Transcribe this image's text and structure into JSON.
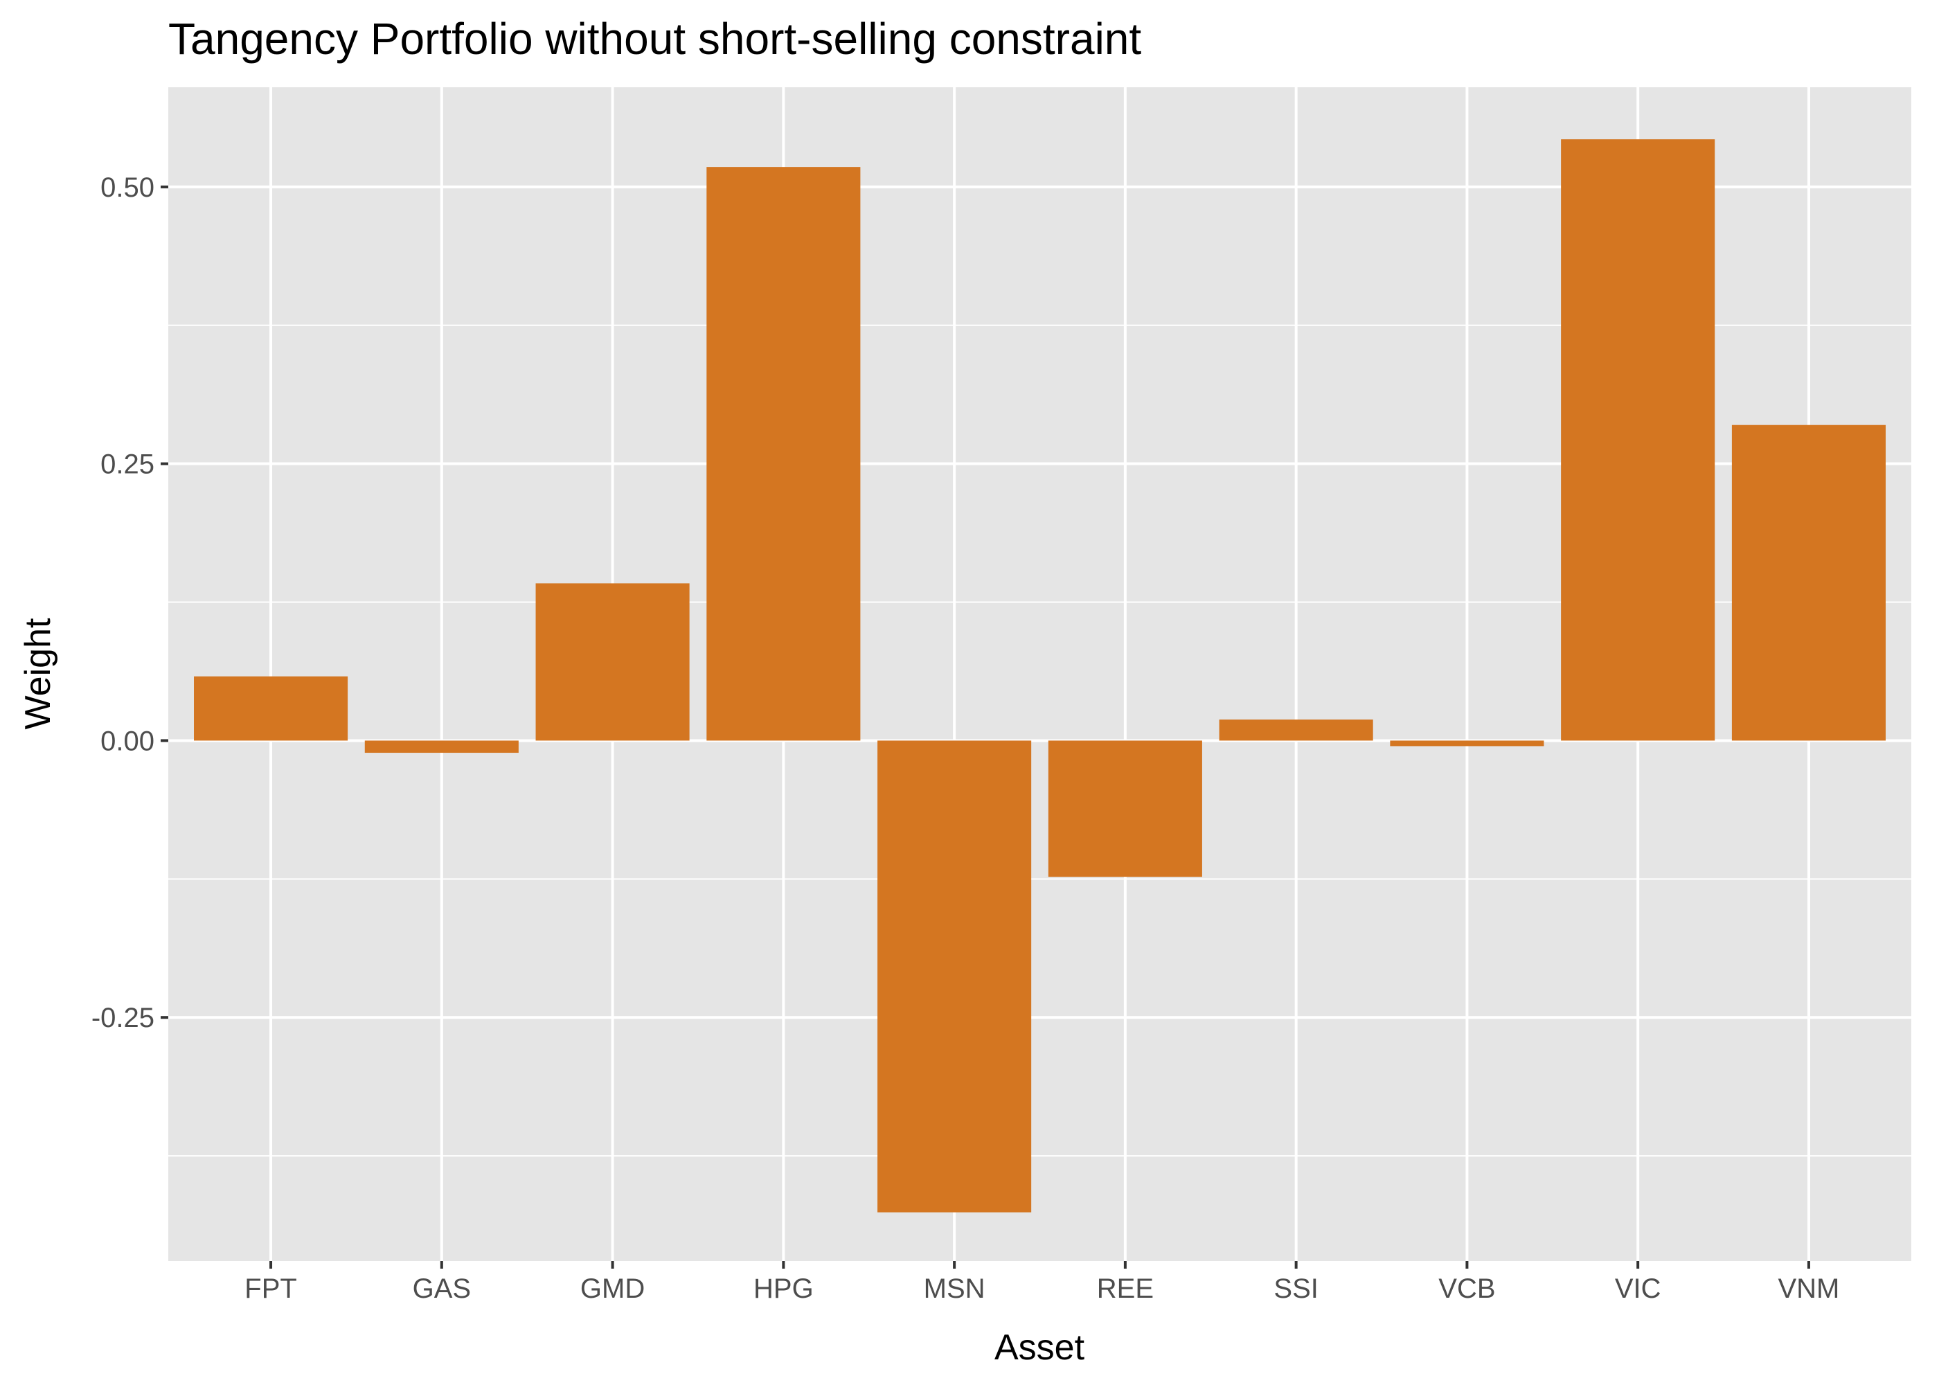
{
  "chart_data": {
    "type": "bar",
    "title": "Tangency Portfolio without short-selling constraint",
    "xlabel": "Asset",
    "ylabel": "Weight",
    "categories": [
      "FPT",
      "GAS",
      "GMD",
      "HPG",
      "MSN",
      "REE",
      "SSI",
      "VCB",
      "VIC",
      "VNM"
    ],
    "values": [
      0.058,
      -0.011,
      0.142,
      0.518,
      -0.426,
      -0.123,
      0.019,
      -0.005,
      0.543,
      0.285
    ],
    "ylim": [
      -0.47,
      0.59
    ],
    "yticks": [
      -0.25,
      0,
      0.25,
      0.5
    ],
    "ytick_labels": [
      "-0.25",
      "0.00",
      "0.25",
      "0.50"
    ],
    "y_minor_gridlines": [
      -0.375,
      -0.125,
      0.125,
      0.375
    ],
    "grid": true,
    "legend": "none",
    "bar_color": "#D47621",
    "panel_color": "#E5E5E5",
    "grid_color": "#FFFFFF"
  }
}
